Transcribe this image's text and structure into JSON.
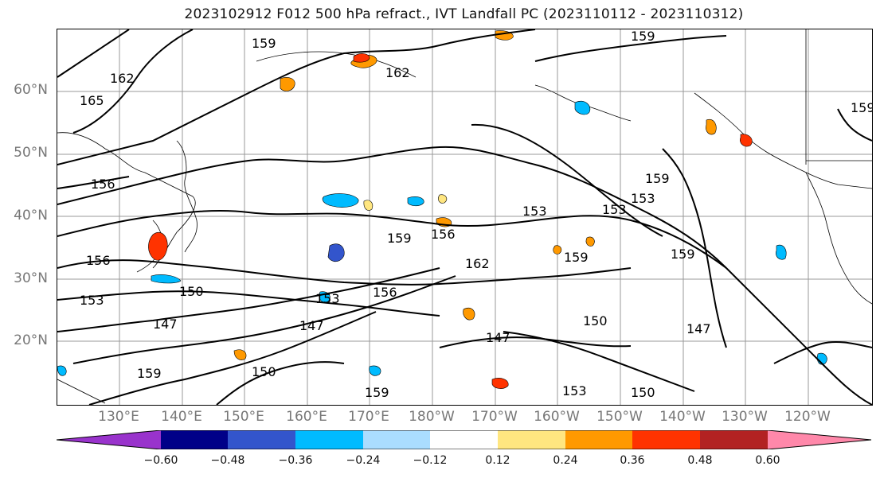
{
  "title": "2023102912 F012 500 hPa refract., IVT Landfall PC (2023110112 - 2023110312)",
  "map": {
    "lat_labels": [
      "60°N",
      "50°N",
      "40°N",
      "30°N",
      "20°N"
    ],
    "lon_labels": [
      "130°E",
      "140°E",
      "150°E",
      "160°E",
      "170°E",
      "180°W",
      "170°W",
      "160°W",
      "150°W",
      "140°W",
      "130°W",
      "120°W"
    ],
    "contour_labels": [
      "159",
      "162",
      "165",
      "159",
      "156",
      "153",
      "156",
      "150",
      "147",
      "162",
      "159",
      "153",
      "159",
      "159",
      "147",
      "153",
      "150",
      "156",
      "159",
      "153",
      "159",
      "147",
      "150",
      "147",
      "153",
      "150",
      "153",
      "159",
      "162",
      "156",
      "159"
    ]
  },
  "colorbar": {
    "colors": [
      "#9933cc",
      "#000088",
      "#3355cc",
      "#00bbff",
      "#aaddff",
      "#ffffff",
      "#ffe680",
      "#ff9900",
      "#ff3300",
      "#b22222",
      "#ff88aa"
    ],
    "ticks": [
      "−0.60",
      "−0.48",
      "−0.36",
      "−0.24",
      "−0.12",
      "0.12",
      "0.24",
      "0.36",
      "0.48",
      "0.60"
    ]
  }
}
